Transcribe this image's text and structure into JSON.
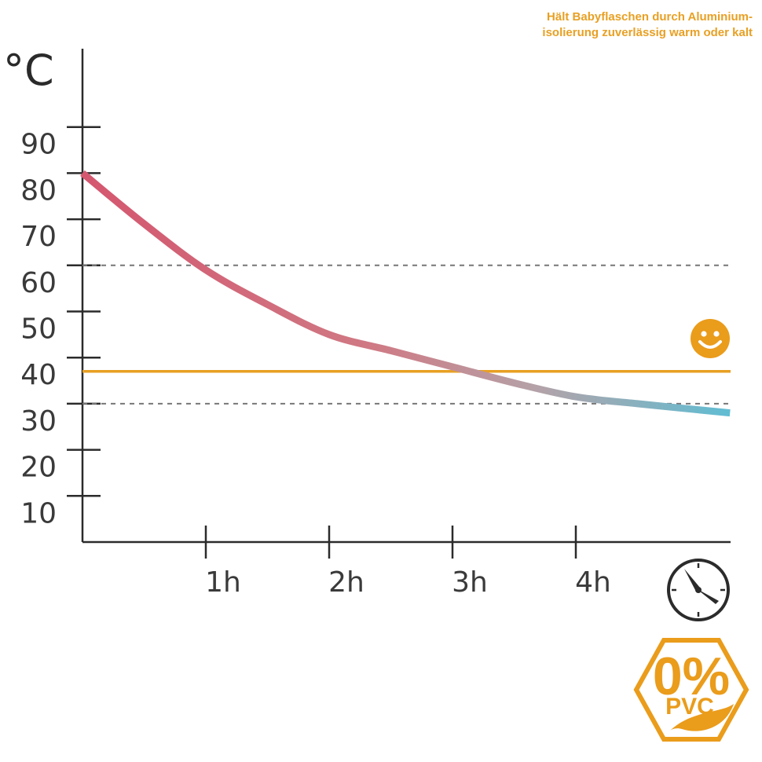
{
  "caption": {
    "line1": "Hält Babyflaschen durch Aluminium-",
    "line2": "isolierung zuverlässig warm oder kalt"
  },
  "badge": {
    "big": "0%",
    "small": "PVC",
    "color": "#ea9c1b"
  },
  "icons": {
    "smiley": "smiley-icon",
    "clock": "clock-icon",
    "leaf": "leaf-icon"
  },
  "chart_data": {
    "type": "line",
    "ylabel": "°C",
    "xlabel": "",
    "xlim": [
      0,
      5.25
    ],
    "ylim": [
      0,
      100
    ],
    "y_ticks": [
      10,
      20,
      30,
      40,
      50,
      60,
      70,
      80,
      90
    ],
    "x_ticks": [
      {
        "value": 1,
        "label": "1h"
      },
      {
        "value": 2,
        "label": "2h"
      },
      {
        "value": 3,
        "label": "3h"
      },
      {
        "value": 4,
        "label": "4h"
      }
    ],
    "series": [
      {
        "x": [
          0,
          0.5,
          1,
          1.5,
          2,
          2.5,
          3,
          3.5,
          4,
          4.5,
          5.25
        ],
        "y": [
          80,
          69,
          59,
          51.5,
          45,
          41.5,
          38,
          34.5,
          31.5,
          30,
          28
        ],
        "color_start": "#d4566f",
        "color_end": "#60bdd3"
      }
    ],
    "reference_lines": [
      {
        "y": 60,
        "style": "dashed",
        "color": "#777777"
      },
      {
        "y": 30,
        "style": "dashed",
        "color": "#777777"
      },
      {
        "y": 37,
        "style": "solid",
        "color": "#e8a023"
      }
    ],
    "grid": false,
    "legend": "none"
  }
}
